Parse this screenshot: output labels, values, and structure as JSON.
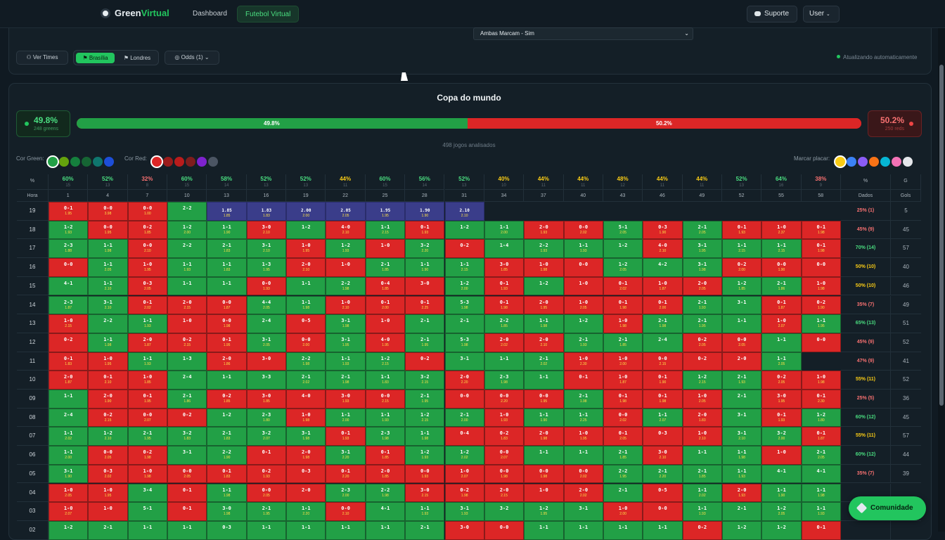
{
  "app": {
    "name_a": "Green",
    "name_b": "Virtual",
    "nav_dashboard": "Dashboard",
    "nav_futebol": "Futebol Virtual",
    "suporte": "Suporte",
    "user": "User",
    "logo_icon": "soccer-ball-icon",
    "accent": "#22c55e"
  },
  "filters": {
    "market": "Ambas Marcam - Sim",
    "ver_times": "Ver Times",
    "brasilia": "Brasília",
    "londres": "Londres",
    "odds": "Odds (1)",
    "auto_update": "Atualizando automaticamente"
  },
  "league": {
    "title": "Copa do mundo",
    "green_pct": "49.8%",
    "green_count": "248 greens",
    "red_pct": "50.2%",
    "red_count": "250 reds",
    "green_fraction": 0.498,
    "bar_green_label": "49.8%",
    "bar_red_label": "50.2%",
    "analyzed": "498 jogos analisados"
  },
  "colors": {
    "green_label": "Cor Green:",
    "red_label": "Cor Red:",
    "mark_label": "Marcar placar:",
    "greens": [
      "#22a046",
      "#65a30d",
      "#15803d",
      "#166534",
      "#0f766e",
      "#1d4ed8"
    ],
    "reds": [
      "#dc2626",
      "#991b1b",
      "#b91c1c",
      "#7f1d1d",
      "#7e22ce",
      "#4b5563"
    ],
    "marks": [
      "#facc15",
      "#3b82f6",
      "#8b5cf6",
      "#f97316",
      "#06b6d4",
      "#f472b6",
      "#e5e7eb"
    ]
  },
  "table": {
    "pct_header": "%",
    "pct_header_right": "%",
    "g_header": "G",
    "hora_label": "Hora",
    "dados_label": "Dados",
    "gols_label": "Gols",
    "col_pcts": [
      [
        "60%",
        "15"
      ],
      [
        "52%",
        "13"
      ],
      [
        "32%",
        "8"
      ],
      [
        "60%",
        "15"
      ],
      [
        "58%",
        "14"
      ],
      [
        "52%",
        "13"
      ],
      [
        "52%",
        "13"
      ],
      [
        "44%",
        "11"
      ],
      [
        "60%",
        "15"
      ],
      [
        "56%",
        "14"
      ],
      [
        "52%",
        "13"
      ],
      [
        "40%",
        "10"
      ],
      [
        "44%",
        "11"
      ],
      [
        "44%",
        "11"
      ],
      [
        "48%",
        "12"
      ],
      [
        "44%",
        "11"
      ],
      [
        "44%",
        "11"
      ],
      [
        "52%",
        "13"
      ],
      [
        "64%",
        "16"
      ],
      [
        "38%",
        "9"
      ]
    ],
    "minutes": [
      "1",
      "4",
      "7",
      "10",
      "13",
      "16",
      "19",
      "22",
      "25",
      "28",
      "31",
      "34",
      "37",
      "40",
      "43",
      "46",
      "49",
      "52",
      "55",
      "58"
    ],
    "rows": [
      {
        "h": "19",
        "d": "25% (1)",
        "g": "5",
        "c": [
          "r|0-1|1.95",
          "r|0-0|3.98",
          "r|0-0|1.00",
          "g|2-2|",
          "p||1.85",
          "p||1.83",
          "p||2.00",
          "p||2.05",
          "p||1.95",
          "p||1.90",
          "p||2.10",
          "e",
          "e",
          "e",
          "e",
          "e",
          "e",
          "e",
          "e",
          "e"
        ]
      },
      {
        "h": "18",
        "d": "45% (9)",
        "g": "45",
        "c": [
          "g|1-2|1.93",
          "r|0-0|1.95",
          "r|0-2|1.85",
          "g|1-2|2.00",
          "g|1-1|1.90",
          "r|3-0|2.10",
          "g|1-2|",
          "r|4-0|2.10",
          "g|1-1|2.15",
          "r|0-1|1.93",
          "g|1-2|",
          "g|1-1|2.00",
          "r|2-0|1.93",
          "r|0-0|2.02",
          "g|5-1|2.05",
          "r|0-3|1.90",
          "g|2-1|2.05",
          "r|0-1|1.93",
          "r|1-0|2.37",
          "r|0-1|1.98"
        ]
      },
      {
        "h": "17",
        "d": "70% (14)",
        "g": "57",
        "c": [
          "g|2-3|1.88",
          "g|1-1|1.98",
          "r|0-0|2.10",
          "g|2-2|",
          "g|2-1|1.83",
          "g|3-1|2.10",
          "r|1-0|1.95",
          "g|1-2|1.93",
          "r|1-0|",
          "g|3-2|2.20",
          "r|0-2|",
          "g|1-4|",
          "g|2-2|1.93",
          "g|1-1|1.93",
          "g|1-2|",
          "r|4-0|2.10",
          "g|3-1|1.95",
          "g|1-1|2.15",
          "g|1-1|2.15",
          "r|0-1|1.98"
        ]
      },
      {
        "h": "16",
        "d": "50% (10)",
        "g": "40",
        "c": [
          "r|0-0|",
          "g|1-1|2.05",
          "r|1-0|1.95",
          "g|1-1|1.93",
          "g|1-1|1.83",
          "g|1-3|1.95",
          "r|2-0|2.10",
          "r|1-0|",
          "g|2-1|1.85",
          "g|1-1|1.90",
          "g|1-1|2.15",
          "r|3-0|1.85",
          "r|1-0|1.98",
          "r|0-0|",
          "g|1-2|2.05",
          "g|4-2|",
          "g|3-1|1.98",
          "r|0-2|2.00",
          "r|0-0|1.90",
          "r|0-0|"
        ]
      },
      {
        "h": "15",
        "d": "50% (10)",
        "g": "46",
        "c": [
          "g|4-1|",
          "g|1-1|2.10",
          "r|0-3|2.05",
          "g|1-1|",
          "g|1-1|",
          "r|0-0|1.93",
          "g|1-1|",
          "g|2-2|1.98",
          "r|0-4|1.85",
          "r|3-0|",
          "g|1-2|2.00",
          "r|0-1|1.93",
          "g|1-2|",
          "r|1-0|",
          "r|0-1|2.02",
          "r|1-0|1.87",
          "r|2-0|2.05",
          "g|1-2|1.85",
          "g|2-1|1.86",
          "r|1-0|1.98"
        ]
      },
      {
        "h": "14",
        "d": "35% (7)",
        "g": "49",
        "c": [
          "g|2-3|1.87",
          "g|3-1|2.10",
          "r|0-1|2.02",
          "r|2-0|2.15",
          "r|0-0|1.87",
          "g|4-4|2.05",
          "g|1-1|1.98",
          "r|1-0|2.10",
          "r|0-1|2.00",
          "r|0-1|2.25",
          "g|5-3|1.98",
          "r|0-1|1.98",
          "r|2-0|1.95",
          "r|1-0|2.05",
          "r|0-1|1.98",
          "r|0-1|2.00",
          "g|2-1|1.93",
          "g|3-1|",
          "r|0-1|1.87",
          "r|0-2|1.90"
        ]
      },
      {
        "h": "13",
        "d": "65% (13)",
        "g": "51",
        "c": [
          "r|1-0|2.15",
          "g|2-2|",
          "g|1-1|1.93",
          "r|1-0|",
          "r|0-0|1.98",
          "g|2-4|",
          "r|0-5|",
          "g|3-1|1.98",
          "r|1-0|",
          "g|2-1|",
          "g|2-1|",
          "g|2-2|1.85",
          "g|1-1|1.98",
          "g|1-2|",
          "r|1-0|1.98",
          "g|2-1|1.98",
          "g|2-1|1.95",
          "g|1-1|",
          "r|1-0|2.07",
          "g|1-1|1.95"
        ]
      },
      {
        "h": "12",
        "d": "45% (9)",
        "g": "52",
        "c": [
          "r|0-2|",
          "g|1-1|1.98",
          "r|2-0|1.87",
          "r|0-2|2.15",
          "r|0-1|1.95",
          "g|3-1|2.05",
          "r|0-0|2.00",
          "g|3-1|1.95",
          "r|4-0|1.95",
          "g|2-1|1.95",
          "g|5-3|1.98",
          "r|2-0|2.02",
          "r|2-0|2.10",
          "g|2-1|1.93",
          "g|2-1|1.85",
          "g|2-4|",
          "r|0-2|2.05",
          "r|0-0|2.05",
          "g|1-1|",
          "r|0-0|"
        ]
      },
      {
        "h": "11",
        "d": "47% (9)",
        "g": "41",
        "c": [
          "r|0-1|1.83",
          "r|1-0|1.95",
          "g|1-1|1.93",
          "g|1-3|",
          "r|2-0|1.86",
          "r|3-0|",
          "g|2-2|1.98",
          "g|1-1|1.93",
          "g|1-2|2.15",
          "r|0-2|",
          "g|3-1|",
          "g|1-1|",
          "g|2-1|2.02",
          "r|1-0|2.30",
          "r|1-0|2.00",
          "r|0-0|2.15",
          "r|0-2|",
          "r|2-0|",
          "g|1-1|2.05",
          "e"
        ]
      },
      {
        "h": "10",
        "d": "55% (11)",
        "g": "52",
        "c": [
          "r|2-0|1.87",
          "r|0-1|2.10",
          "r|1-0|1.85",
          "g|2-4|",
          "g|1-1|",
          "g|3-3|",
          "g|2-1|2.02",
          "g|2-1|1.98",
          "g|1-1|1.83",
          "g|3-2|2.15",
          "r|2-0|2.20",
          "g|2-3|1.98",
          "g|1-1|",
          "r|0-1|",
          "r|1-0|1.87",
          "r|0-1|1.90",
          "g|1-2|2.15",
          "g|2-1|1.93",
          "r|0-2|2.05",
          "r|1-0|1.98"
        ]
      },
      {
        "h": "09",
        "d": "25% (5)",
        "g": "36",
        "c": [
          "g|1-1|",
          "r|2-0|1.90",
          "r|0-1|1.95",
          "g|2-1|1.86",
          "r|0-2|1.85",
          "r|3-0|1.85",
          "r|4-0|",
          "r|3-0|1.93",
          "r|0-0|2.15",
          "g|2-1|1.95",
          "r|0-0|",
          "r|0-0|2.20",
          "r|0-0|1.95",
          "g|2-1|1.98",
          "r|0-1|1.98",
          "r|0-1|1.98",
          "r|1-0|2.05",
          "g|2-1|",
          "r|3-0|1.95",
          "r|0-1|2.30"
        ]
      },
      {
        "h": "08",
        "d": "60% (12)",
        "g": "45",
        "c": [
          "g|2-4|",
          "r|0-2|2.15",
          "r|0-0|2.07",
          "r|0-2|",
          "g|1-2|",
          "g|2-3|1.80",
          "r|1-0|1.98",
          "g|1-1|2.00",
          "g|1-1|1.93",
          "g|1-2|2.15",
          "g|2-1|2.00",
          "r|1-0|1.93",
          "g|1-1|1.90",
          "g|1-1|2.25",
          "r|0-0|2.02",
          "g|1-1|2.07",
          "r|2-0|1.83",
          "g|3-1|",
          "r|0-1|1.93",
          "g|1-2|1.80"
        ]
      },
      {
        "h": "07",
        "d": "55% (11)",
        "g": "57",
        "c": [
          "g|1-1|2.02",
          "g|1-2|2.10",
          "g|2-1|1.95",
          "g|3-2|1.83",
          "g|2-1|1.83",
          "g|3-2|2.07",
          "g|3-1|1.98",
          "r|0-1|1.93",
          "g|2-3|1.98",
          "g|1-1|1.98",
          "r|0-4|",
          "r|0-2|1.83",
          "r|2-0|1.98",
          "r|1-0|1.95",
          "r|0-1|2.05",
          "r|0-3|",
          "r|1-0|2.10",
          "g|3-1|2.10",
          "g|3-2|2.00",
          "r|0-1|1.87"
        ]
      },
      {
        "h": "06",
        "d": "60% (12)",
        "g": "44",
        "c": [
          "g|1-1|2.00",
          "r|0-0|2.05",
          "r|0-2|1.98",
          "g|3-1|",
          "g|2-2|1.90",
          "r|0-1|",
          "r|2-0|1.98",
          "g|3-1|2.20",
          "r|0-1|1.85",
          "g|1-2|1.93",
          "g|1-2|2.02",
          "r|0-0|2.07",
          "g|1-1|",
          "g|1-1|",
          "g|2-1|1.85",
          "r|3-0|2.10",
          "g|1-1|",
          "g|1-1|1.98",
          "r|1-0|",
          "g|2-1|2.05"
        ]
      },
      {
        "h": "05",
        "d": "35% (7)",
        "g": "39",
        "c": [
          "g|3-1|1.90",
          "r|0-3|2.02",
          "r|1-0|1.98",
          "r|0-0|2.05",
          "r|0-1|1.83",
          "r|0-2|1.93",
          "r|0-3|",
          "r|0-1|2.20",
          "r|2-0|1.85",
          "r|0-0|1.93",
          "r|1-0|2.07",
          "r|0-0|1.98",
          "r|0-0|1.98",
          "r|0-0|2.02",
          "g|2-2|1.95",
          "g|2-1|2.20",
          "g|2-1|1.85",
          "g|1-1|1.93",
          "g|4-1|",
          "g|4-1|"
        ]
      },
      {
        "h": "04",
        "d": "",
        "g": "",
        "c": [
          "r|1-0|2.05",
          "r|1-0|1.95",
          "g|3-4|",
          "r|0-1|",
          "g|1-1|1.98",
          "r|0-0|2.05",
          "r|2-0|",
          "g|2-3|2.00",
          "g|2-2|1.98",
          "r|3-0|2.15",
          "r|0-2|1.98",
          "r|2-0|2.15",
          "r|1-0|",
          "r|2-0|2.02",
          "g|2-1|",
          "r|0-5|",
          "g|1-1|2.02",
          "r|2-0|1.93",
          "g|1-1|1.90",
          "g|1-1|1.98"
        ]
      },
      {
        "h": "03",
        "d": "",
        "g": "",
        "c": [
          "r|1-0|2.07",
          "r|1-0|",
          "g|5-1|",
          "r|0-1|",
          "g|3-0|1.98",
          "g|2-1|1.95",
          "g|1-1|2.20",
          "r|0-0|2.10",
          "g|4-1|",
          "g|1-1|1.93",
          "g|3-1|1.93",
          "g|3-2|",
          "g|1-2|1.95",
          "g|3-1|",
          "r|1-0|2.00",
          "r|0-0|",
          "g|1-1|1.93",
          "g|2-1|",
          "g|1-2|2.05",
          "g|1-1|1.93"
        ]
      },
      {
        "h": "02",
        "d": "",
        "g": "",
        "c": [
          "g|1-2|",
          "g|2-1|",
          "g|1-1|",
          "g|1-1|",
          "g|0-3|",
          "g|1-1|",
          "g|1-1|",
          "g|1-1|",
          "g|1-1|",
          "g|2-1|",
          "r|3-0|",
          "r|0-0|",
          "g|1-1|",
          "g|1-1|",
          "g|1-1|",
          "g|1-1|",
          "r|0-2|",
          "g|1-2|",
          "g|1-2|",
          "r|0-1|"
        ]
      }
    ]
  },
  "community": {
    "label": "Comunidade",
    "icon": "rocket-icon"
  }
}
